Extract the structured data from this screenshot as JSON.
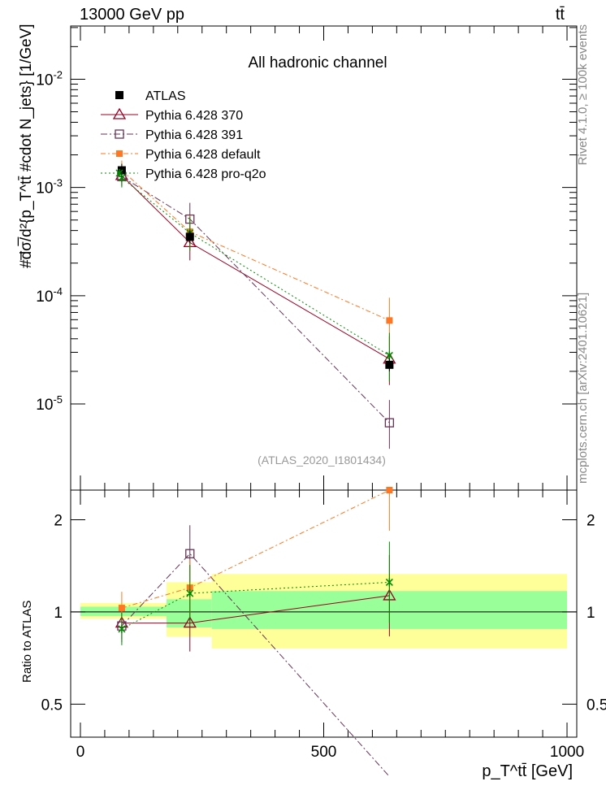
{
  "header": {
    "left": "13000 GeV pp",
    "right": "tt̄"
  },
  "side": {
    "rivet": "Rivet 4.1.0, ≥ 100k events",
    "mcplots": "mcplots.cern.ch [arXiv:2401.10621]"
  },
  "chart_data": [
    {
      "type": "line",
      "title": "All hadronic channel",
      "ylabel": "#d̅σ̅/d²{p_T^tt̄ #cdot N_jets} [1/GeV]",
      "xlabel": "p_T^tt̄ [GeV]",
      "yscale": "log",
      "ylim": [
        1.6e-06,
        0.031
      ],
      "xlim": [
        -20,
        1020
      ],
      "yticks": [
        {
          "v": 0.01,
          "label": "10^-2"
        },
        {
          "v": 0.001,
          "label": "10^-3"
        },
        {
          "v": 0.0001,
          "label": "10^-4"
        },
        {
          "v": 1e-05,
          "label": "10^-5"
        }
      ],
      "annotation": "(ATLAS_2020_I1801434)",
      "x": [
        85,
        225,
        635
      ],
      "series": [
        {
          "name": "ATLAS",
          "color": "#000000",
          "values": [
            0.00144,
            0.00035,
            2.3e-05
          ]
        },
        {
          "name": "Pythia 6.428 370",
          "color": "#990022",
          "values": [
            0.00129,
            0.00031,
            2.6e-05
          ]
        },
        {
          "name": "Pythia 6.428 391",
          "color": "#663355",
          "values": [
            0.00126,
            0.00051,
            6.7e-06
          ]
        },
        {
          "name": "Pythia 6.428 default",
          "color": "#ff7722",
          "values": [
            0.00144,
            0.00039,
            5.9e-05
          ]
        },
        {
          "name": "Pythia 6.428 pro-q2o",
          "color": "#008800",
          "values": [
            0.00123,
            0.00038,
            2.8e-05
          ]
        }
      ]
    },
    {
      "type": "line",
      "ylabel": "Ratio to ATLAS",
      "yscale": "log",
      "ylim": [
        0.39,
        2.5
      ],
      "xlim": [
        -20,
        1020
      ],
      "yticks": [
        {
          "v": 2,
          "label": "2"
        },
        {
          "v": 1,
          "label": "1"
        },
        {
          "v": 0.5,
          "label": "0.5"
        }
      ],
      "xticks": [
        {
          "v": 0,
          "label": "0"
        },
        {
          "v": 500,
          "label": "500"
        },
        {
          "v": 1000,
          "label": "1000"
        }
      ],
      "bins": [
        [
          0,
          177
        ],
        [
          177,
          270
        ],
        [
          270,
          1000
        ]
      ],
      "band_outer": [
        [
          0.95,
          1.07
        ],
        [
          0.83,
          1.25
        ],
        [
          0.76,
          1.33
        ]
      ],
      "band_inner": [
        [
          0.97,
          1.04
        ],
        [
          0.89,
          1.1
        ],
        [
          0.88,
          1.17
        ]
      ],
      "x": [
        85,
        225,
        635
      ],
      "series": [
        {
          "name": "Pythia 6.428 370",
          "values": [
            0.92,
            0.92,
            1.13
          ]
        },
        {
          "name": "Pythia 6.428 391",
          "values": [
            0.9,
            1.55,
            0.29
          ]
        },
        {
          "name": "Pythia 6.428 default",
          "values": [
            1.03,
            1.2,
            2.5
          ]
        },
        {
          "name": "Pythia 6.428 pro-q2o",
          "values": [
            0.88,
            1.15,
            1.25
          ]
        }
      ]
    }
  ]
}
